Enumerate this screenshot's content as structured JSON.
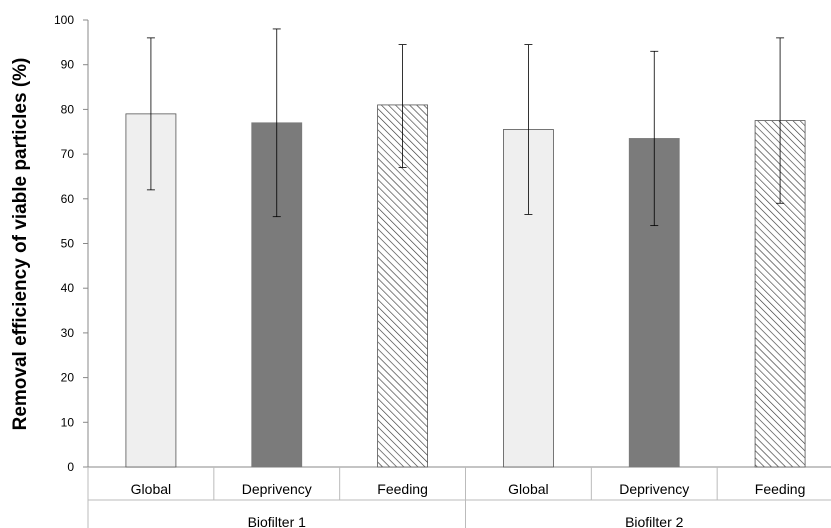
{
  "chart_data": {
    "type": "bar",
    "title": "",
    "xlabel": "",
    "ylabel": "Removal efficiency of viable particles (%)",
    "ylim": [
      0,
      100
    ],
    "yticks": [
      0,
      10,
      20,
      30,
      40,
      50,
      60,
      70,
      80,
      90,
      100
    ],
    "grid": false,
    "legend": "none",
    "groups": [
      {
        "name": "Biofilter 1",
        "bars": [
          {
            "category": "Global",
            "value": 79,
            "error_low": 62,
            "error_high": 96,
            "style": "light",
            "color": "#efefef"
          },
          {
            "category": "Deprivency",
            "value": 77,
            "error_low": 56,
            "error_high": 98,
            "style": "dark",
            "color": "#7b7b7b"
          },
          {
            "category": "Feeding",
            "value": 81,
            "error_low": 67,
            "error_high": 94.5,
            "style": "hatched",
            "color": "#ffffff"
          }
        ]
      },
      {
        "name": "Biofilter 2",
        "bars": [
          {
            "category": "Global",
            "value": 75.5,
            "error_low": 56.5,
            "error_high": 94.5,
            "style": "light",
            "color": "#efefef"
          },
          {
            "category": "Deprivency",
            "value": 73.5,
            "error_low": 54,
            "error_high": 93,
            "style": "dark",
            "color": "#7b7b7b"
          },
          {
            "category": "Feeding",
            "value": 77.5,
            "error_low": 59,
            "error_high": 96,
            "style": "hatched",
            "color": "#ffffff"
          }
        ]
      }
    ]
  }
}
